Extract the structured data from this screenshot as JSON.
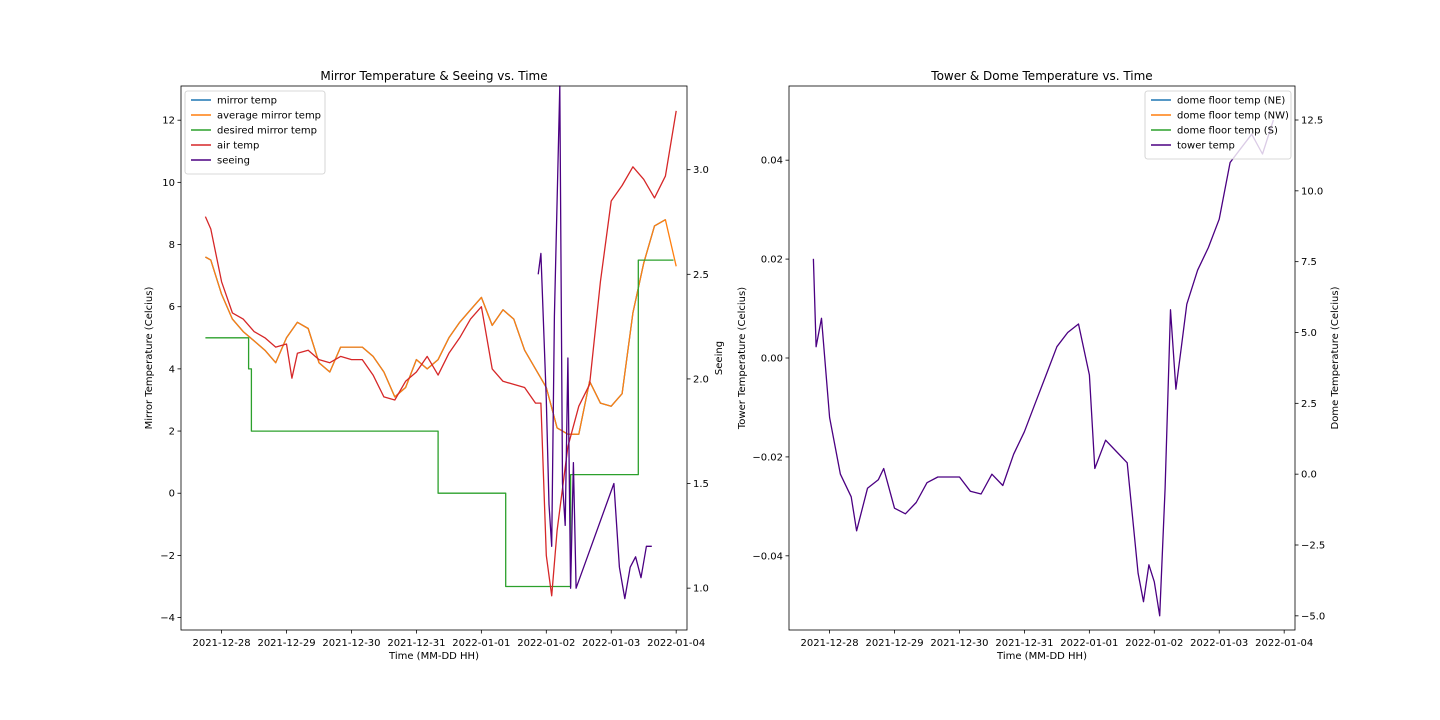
{
  "chart_data": [
    {
      "type": "line",
      "title": "Mirror Temperature & Seeing vs. Time",
      "xlabel": "Time (MM-DD HH)",
      "ylabel": "Mirror Temperature (Celcius)",
      "ylabel_right": "Seeing",
      "x_ticks": [
        "2021-12-28",
        "2021-12-29",
        "2021-12-30",
        "2021-12-31",
        "2022-01-01",
        "2022-01-02",
        "2022-01-03",
        "2022-01-04"
      ],
      "xlim": [
        "2021-12-27 09:00",
        "2022-01-04 04:00"
      ],
      "ylim": [
        -4.4,
        13.1
      ],
      "y_ticks": [
        -4,
        -2,
        0,
        2,
        4,
        6,
        8,
        10,
        12
      ],
      "ylim_right": [
        0.8,
        3.4
      ],
      "y_ticks_right": [
        1.0,
        1.5,
        2.0,
        2.5,
        3.0
      ],
      "legend_position": "upper left",
      "grid": false,
      "series": [
        {
          "name": "mirror temp",
          "axis": "left",
          "color": "#1f77b4",
          "x": [
            "2021-12-27 18:00",
            "2021-12-27 20:00",
            "2021-12-28 00:00",
            "2021-12-28 04:00",
            "2021-12-28 08:00",
            "2021-12-28 12:00",
            "2021-12-28 16:00",
            "2021-12-28 20:00",
            "2021-12-29 00:00",
            "2021-12-29 04:00",
            "2021-12-29 08:00",
            "2021-12-29 12:00",
            "2021-12-29 16:00",
            "2021-12-29 20:00",
            "2021-12-30 00:00",
            "2021-12-30 04:00",
            "2021-12-30 08:00",
            "2021-12-30 12:00",
            "2021-12-30 16:00",
            "2021-12-30 20:00",
            "2021-12-31 00:00",
            "2021-12-31 04:00",
            "2021-12-31 08:00",
            "2021-12-31 12:00",
            "2021-12-31 16:00",
            "2021-12-31 20:00",
            "2022-01-01 00:00",
            "2022-01-01 04:00",
            "2022-01-01 08:00",
            "2022-01-01 12:00",
            "2022-01-01 16:00",
            "2022-01-01 20:00",
            "2022-01-02 00:00",
            "2022-01-02 04:00",
            "2022-01-02 08:00",
            "2022-01-02 12:00",
            "2022-01-02 16:00",
            "2022-01-02 20:00",
            "2022-01-03 00:00",
            "2022-01-03 04:00",
            "2022-01-03 08:00",
            "2022-01-03 12:00",
            "2022-01-03 16:00",
            "2022-01-03 20:00"
          ],
          "y": [
            7.6,
            7.5,
            6.4,
            5.6,
            5.2,
            4.9,
            4.6,
            4.2,
            5.0,
            5.5,
            5.3,
            4.2,
            3.9,
            4.7,
            4.7,
            4.7,
            4.4,
            3.9,
            3.1,
            3.4,
            4.3,
            4.0,
            4.3,
            5.0,
            5.5,
            5.9,
            6.3,
            5.4,
            5.9,
            5.6,
            4.6,
            4.0,
            3.4,
            2.1,
            1.9,
            1.9,
            3.6,
            2.9,
            2.8,
            3.2,
            5.8,
            7.4,
            8.6,
            8.8
          ]
        },
        {
          "name": "average mirror temp",
          "axis": "left",
          "color": "#ff7f0e",
          "x": [
            "2021-12-27 18:00",
            "2021-12-27 20:00",
            "2021-12-28 00:00",
            "2021-12-28 04:00",
            "2021-12-28 08:00",
            "2021-12-28 12:00",
            "2021-12-28 16:00",
            "2021-12-28 20:00",
            "2021-12-29 00:00",
            "2021-12-29 04:00",
            "2021-12-29 08:00",
            "2021-12-29 12:00",
            "2021-12-29 16:00",
            "2021-12-29 20:00",
            "2021-12-30 00:00",
            "2021-12-30 04:00",
            "2021-12-30 08:00",
            "2021-12-30 12:00",
            "2021-12-30 16:00",
            "2021-12-30 20:00",
            "2021-12-31 00:00",
            "2021-12-31 04:00",
            "2021-12-31 08:00",
            "2021-12-31 12:00",
            "2021-12-31 16:00",
            "2021-12-31 20:00",
            "2022-01-01 00:00",
            "2022-01-01 04:00",
            "2022-01-01 08:00",
            "2022-01-01 12:00",
            "2022-01-01 16:00",
            "2022-01-01 20:00",
            "2022-01-02 00:00",
            "2022-01-02 04:00",
            "2022-01-02 08:00",
            "2022-01-02 12:00",
            "2022-01-02 16:00",
            "2022-01-02 20:00",
            "2022-01-03 00:00",
            "2022-01-03 04:00",
            "2022-01-03 08:00",
            "2022-01-03 12:00",
            "2022-01-03 16:00",
            "2022-01-03 20:00",
            "2022-01-04 00:00"
          ],
          "y": [
            7.6,
            7.5,
            6.4,
            5.6,
            5.2,
            4.9,
            4.6,
            4.2,
            5.0,
            5.5,
            5.3,
            4.2,
            3.9,
            4.7,
            4.7,
            4.7,
            4.4,
            3.9,
            3.1,
            3.4,
            4.3,
            4.0,
            4.3,
            5.0,
            5.5,
            5.9,
            6.3,
            5.4,
            5.9,
            5.6,
            4.6,
            4.0,
            3.4,
            2.1,
            1.9,
            1.9,
            3.6,
            2.9,
            2.8,
            3.2,
            5.8,
            7.4,
            8.6,
            8.8,
            7.3
          ]
        },
        {
          "name": "desired mirror temp",
          "axis": "left",
          "color": "#2ca02c",
          "step": true,
          "x": [
            "2021-12-27 18:00",
            "2021-12-28 10:00",
            "2021-12-28 11:00",
            "2021-12-31 08:00",
            "2022-01-01 09:00",
            "2022-01-02 09:00",
            "2022-01-03 10:00",
            "2022-01-03 23:00"
          ],
          "y": [
            5,
            4,
            2,
            0,
            -3,
            0.6,
            7.5,
            7.5
          ]
        },
        {
          "name": "air temp",
          "axis": "left",
          "color": "#d62728",
          "x": [
            "2021-12-27 18:00",
            "2021-12-27 20:00",
            "2021-12-28 00:00",
            "2021-12-28 04:00",
            "2021-12-28 08:00",
            "2021-12-28 12:00",
            "2021-12-28 16:00",
            "2021-12-28 20:00",
            "2021-12-29 00:00",
            "2021-12-29 02:00",
            "2021-12-29 04:00",
            "2021-12-29 08:00",
            "2021-12-29 12:00",
            "2021-12-29 16:00",
            "2021-12-29 20:00",
            "2021-12-30 00:00",
            "2021-12-30 04:00",
            "2021-12-30 08:00",
            "2021-12-30 12:00",
            "2021-12-30 16:00",
            "2021-12-30 20:00",
            "2021-12-31 00:00",
            "2021-12-31 04:00",
            "2021-12-31 08:00",
            "2021-12-31 12:00",
            "2021-12-31 16:00",
            "2021-12-31 20:00",
            "2022-01-01 00:00",
            "2022-01-01 04:00",
            "2022-01-01 08:00",
            "2022-01-01 12:00",
            "2022-01-01 16:00",
            "2022-01-01 20:00",
            "2022-01-01 22:00",
            "2022-01-02 00:00",
            "2022-01-02 02:00",
            "2022-01-02 04:00",
            "2022-01-02 08:00",
            "2022-01-02 12:00",
            "2022-01-02 16:00",
            "2022-01-02 20:00",
            "2022-01-03 00:00",
            "2022-01-03 04:00",
            "2022-01-03 08:00",
            "2022-01-03 12:00",
            "2022-01-03 16:00",
            "2022-01-03 20:00",
            "2022-01-04 00:00"
          ],
          "y": [
            8.9,
            8.5,
            6.8,
            5.8,
            5.6,
            5.2,
            5.0,
            4.7,
            4.8,
            3.7,
            4.5,
            4.6,
            4.3,
            4.2,
            4.4,
            4.3,
            4.3,
            3.8,
            3.1,
            3.0,
            3.6,
            3.9,
            4.4,
            3.8,
            4.5,
            5.0,
            5.6,
            6.0,
            4.0,
            3.6,
            3.5,
            3.4,
            2.9,
            2.9,
            -2.0,
            -3.3,
            -1.2,
            1.5,
            2.8,
            3.5,
            6.8,
            9.4,
            9.9,
            10.5,
            10.1,
            9.5,
            10.2,
            12.3
          ]
        },
        {
          "name": "seeing",
          "axis": "right",
          "color": "#4b0082",
          "x": [
            "2022-01-01 21:00",
            "2022-01-01 22:00",
            "2022-01-02 00:00",
            "2022-01-02 01:00",
            "2022-01-02 02:00",
            "2022-01-02 03:00",
            "2022-01-02 05:00",
            "2022-01-02 06:00",
            "2022-01-02 07:00",
            "2022-01-02 08:00",
            "2022-01-02 09:00",
            "2022-01-02 10:00",
            "2022-01-02 11:00",
            "2022-01-03 01:00",
            "2022-01-03 03:00",
            "2022-01-03 05:00",
            "2022-01-03 07:00",
            "2022-01-03 09:00",
            "2022-01-03 11:00",
            "2022-01-03 13:00",
            "2022-01-03 15:00"
          ],
          "y": [
            2.5,
            2.6,
            1.9,
            1.4,
            1.2,
            2.3,
            3.4,
            1.5,
            1.3,
            2.1,
            1.0,
            1.6,
            1.0,
            1.5,
            1.1,
            0.95,
            1.1,
            1.15,
            1.05,
            1.2,
            1.2
          ]
        }
      ]
    },
    {
      "type": "line",
      "title": "Tower & Dome Temperature vs. Time",
      "xlabel": "Time (MM-DD HH)",
      "ylabel": "Tower Temperature (Celcius)",
      "ylabel_right": "Dome Temperature (Celcius)",
      "x_ticks": [
        "2021-12-28",
        "2021-12-29",
        "2021-12-30",
        "2021-12-31",
        "2022-01-01",
        "2022-01-02",
        "2022-01-03",
        "2022-01-04"
      ],
      "xlim": [
        "2021-12-27 09:00",
        "2022-01-04 04:00"
      ],
      "ylim": [
        -0.055,
        0.055
      ],
      "y_ticks": [
        -0.04,
        -0.02,
        0.0,
        0.02,
        0.04
      ],
      "ylim_right": [
        -5.5,
        13.7
      ],
      "y_ticks_right": [
        -5.0,
        -2.5,
        0.0,
        2.5,
        5.0,
        7.5,
        10.0,
        12.5
      ],
      "legend_position": "upper right",
      "grid": false,
      "series": [
        {
          "name": "dome floor temp (NE)",
          "axis": "left",
          "color": "#1f77b4",
          "x": [],
          "y": []
        },
        {
          "name": "dome floor temp (NW)",
          "axis": "left",
          "color": "#ff7f0e",
          "x": [],
          "y": []
        },
        {
          "name": "dome floor temp (S)",
          "axis": "left",
          "color": "#2ca02c",
          "x": [],
          "y": []
        },
        {
          "name": "tower temp",
          "axis": "right",
          "color": "#4b0082",
          "x": [
            "2021-12-27 18:00",
            "2021-12-27 19:00",
            "2021-12-27 21:00",
            "2021-12-28 00:00",
            "2021-12-28 04:00",
            "2021-12-28 08:00",
            "2021-12-28 10:00",
            "2021-12-28 14:00",
            "2021-12-28 18:00",
            "2021-12-28 20:00",
            "2021-12-29 00:00",
            "2021-12-29 04:00",
            "2021-12-29 08:00",
            "2021-12-29 12:00",
            "2021-12-29 16:00",
            "2021-12-29 20:00",
            "2021-12-30 00:00",
            "2021-12-30 04:00",
            "2021-12-30 08:00",
            "2021-12-30 12:00",
            "2021-12-30 16:00",
            "2021-12-30 20:00",
            "2021-12-31 00:00",
            "2021-12-31 04:00",
            "2021-12-31 08:00",
            "2021-12-31 12:00",
            "2021-12-31 16:00",
            "2021-12-31 20:00",
            "2022-01-01 00:00",
            "2022-01-01 02:00",
            "2022-01-01 06:00",
            "2022-01-01 10:00",
            "2022-01-01 14:00",
            "2022-01-01 18:00",
            "2022-01-01 20:00",
            "2022-01-01 22:00",
            "2022-01-02 00:00",
            "2022-01-02 02:00",
            "2022-01-02 04:00",
            "2022-01-02 06:00",
            "2022-01-02 08:00",
            "2022-01-02 10:00",
            "2022-01-02 12:00",
            "2022-01-02 16:00",
            "2022-01-02 20:00",
            "2022-01-03 00:00",
            "2022-01-03 04:00",
            "2022-01-03 08:00",
            "2022-01-03 12:00",
            "2022-01-03 16:00",
            "2022-01-03 20:00"
          ],
          "y": [
            7.6,
            4.5,
            5.5,
            2.0,
            0.0,
            -0.8,
            -2.0,
            -0.5,
            -0.2,
            0.2,
            -1.2,
            -1.4,
            -1.0,
            -0.3,
            -0.1,
            -0.1,
            -0.1,
            -0.6,
            -0.7,
            0.0,
            -0.4,
            0.7,
            1.5,
            2.5,
            3.5,
            4.5,
            5.0,
            5.3,
            3.5,
            0.2,
            1.2,
            0.8,
            0.4,
            -3.5,
            -4.5,
            -3.2,
            -3.8,
            -5.0,
            -0.5,
            5.8,
            3.0,
            4.5,
            6.0,
            7.2,
            8.0,
            9.0,
            11.0,
            11.5,
            12.0,
            11.3,
            12.5
          ]
        }
      ]
    }
  ]
}
